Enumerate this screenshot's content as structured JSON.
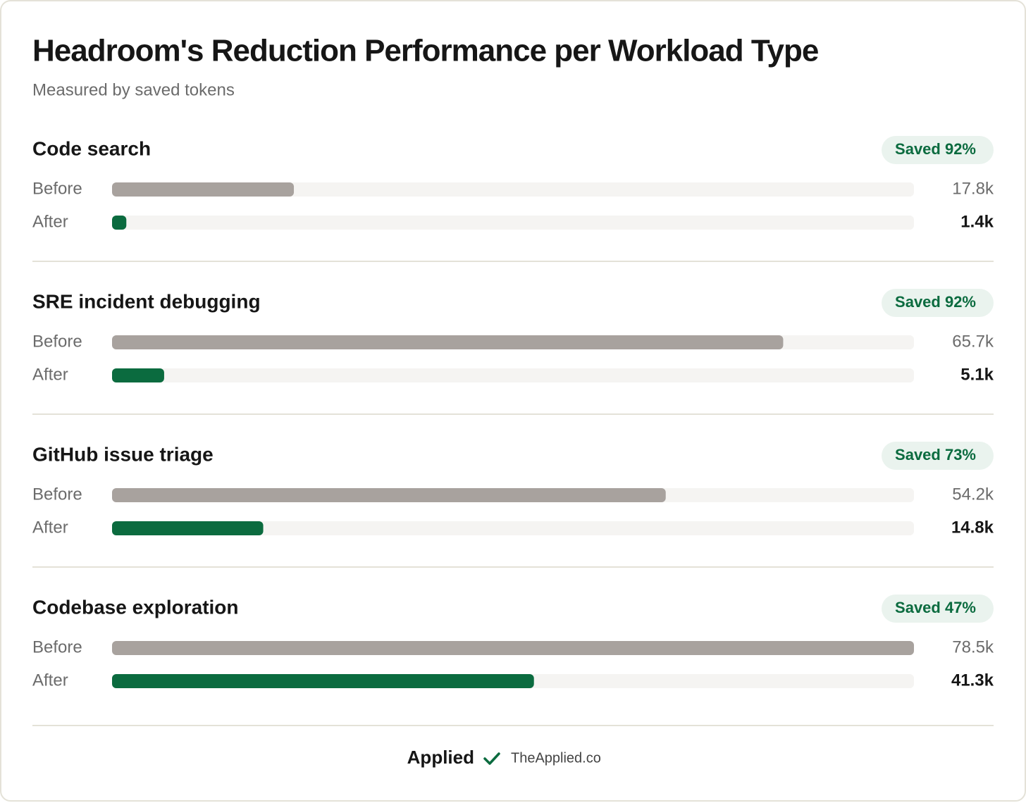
{
  "chart_data": {
    "type": "bar",
    "orientation": "horizontal",
    "title": "Headroom's Reduction Performance per Workload Type",
    "subtitle": "Measured by saved tokens",
    "categories": [
      "Code search",
      "SRE incident debugging",
      "GitHub issue triage",
      "Codebase exploration"
    ],
    "badges": [
      "Saved 92%",
      "Saved 92%",
      "Saved 73%",
      "Saved 47%"
    ],
    "series": [
      {
        "name": "Before",
        "color": "#a8a29e",
        "values": [
          17800,
          65700,
          54200,
          78500
        ],
        "value_labels": [
          "17.8k",
          "65.7k",
          "54.2k",
          "78.5k"
        ]
      },
      {
        "name": "After",
        "color": "#0b6b3f",
        "values": [
          1400,
          5100,
          14800,
          41300
        ],
        "value_labels": [
          "1.4k",
          "5.1k",
          "14.8k",
          "41.3k"
        ]
      }
    ],
    "xlim": [
      0,
      78500
    ]
  },
  "footer": {
    "brand": "Applied",
    "site": "TheApplied.co"
  }
}
